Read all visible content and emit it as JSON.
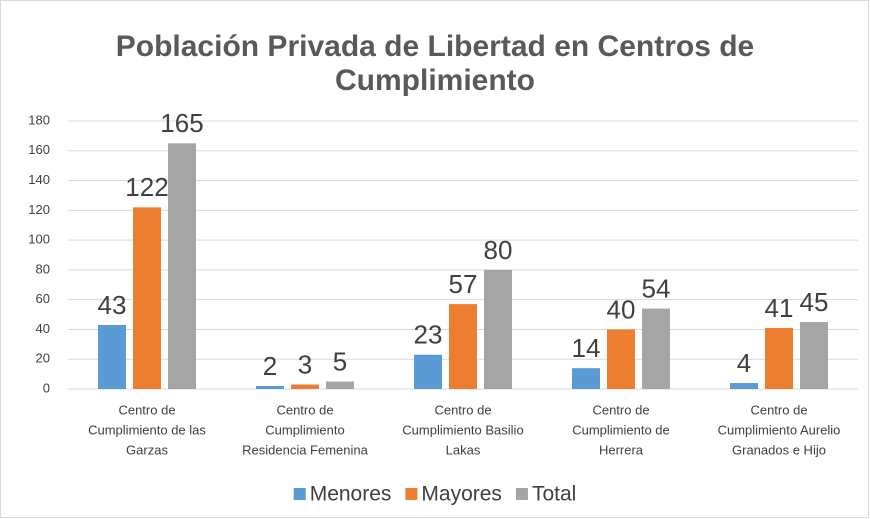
{
  "chart_data": {
    "type": "bar",
    "title": "Población Privada de Libertad en Centros de Cumplimiento",
    "categories": [
      [
        "Centro de",
        "Cumplimiento de las",
        "Garzas"
      ],
      [
        "Centro de",
        "Cumplimiento",
        "Residencia Femenina"
      ],
      [
        "Centro de",
        "Cumplimiento Basilio",
        "Lakas"
      ],
      [
        "Centro de",
        "Cumplimiento de",
        "Herrera"
      ],
      [
        "Centro de",
        "Cumplimiento Aurelio",
        "Granados e Hijo"
      ]
    ],
    "series": [
      {
        "name": "Menores",
        "color": "#5b9bd5",
        "values": [
          43,
          2,
          23,
          14,
          4
        ]
      },
      {
        "name": "Mayores",
        "color": "#ed7d31",
        "values": [
          122,
          3,
          57,
          40,
          41
        ]
      },
      {
        "name": "Total",
        "color": "#a5a5a5",
        "values": [
          165,
          5,
          80,
          54,
          45
        ]
      }
    ],
    "ylim": [
      0,
      180
    ],
    "yticks": [
      0,
      20,
      40,
      60,
      80,
      100,
      120,
      140,
      160,
      180
    ],
    "grid": true,
    "legend": "bottom"
  }
}
